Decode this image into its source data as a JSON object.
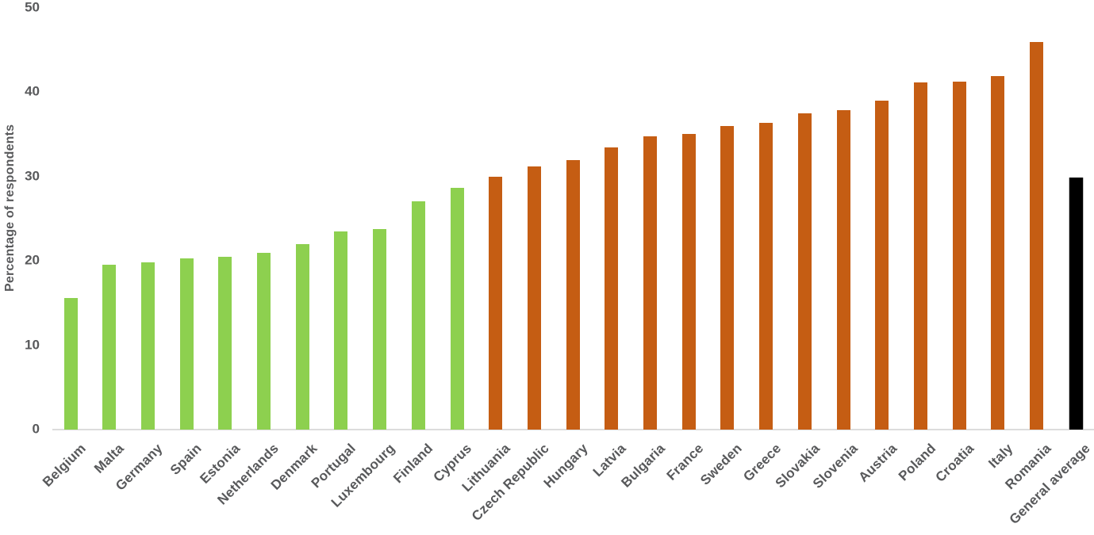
{
  "chart_data": {
    "type": "bar",
    "title": "",
    "xlabel": "",
    "ylabel": "Percentage of respondents",
    "ylim": [
      0,
      50
    ],
    "yticks": [
      0,
      10,
      20,
      30,
      40,
      50
    ],
    "grid": false,
    "legend_position": "none",
    "categories": [
      "Belgium",
      "Malta",
      "Germany",
      "Spain",
      "Estonia",
      "Netherlands",
      "Denmark",
      "Portugal",
      "Luxembourg",
      "Finland",
      "Cyprus",
      "Lithuania",
      "Czech Republic",
      "Hungary",
      "Latvia",
      "Bulgaria",
      "France",
      "Sweden",
      "Greece",
      "Slovakia",
      "Slovenia",
      "Austria",
      "Poland",
      "Croatia",
      "Italy",
      "Romania",
      "General average"
    ],
    "values": [
      15.6,
      19.5,
      19.8,
      20.3,
      20.5,
      20.9,
      22.0,
      23.5,
      23.8,
      27.0,
      28.6,
      30.0,
      31.2,
      31.9,
      33.4,
      34.7,
      35.0,
      36.0,
      36.3,
      37.5,
      37.8,
      39.0,
      41.1,
      41.2,
      41.9,
      45.9,
      29.9
    ],
    "groups": [
      "below_average",
      "below_average",
      "below_average",
      "below_average",
      "below_average",
      "below_average",
      "below_average",
      "below_average",
      "below_average",
      "below_average",
      "below_average",
      "above_average",
      "above_average",
      "above_average",
      "above_average",
      "above_average",
      "above_average",
      "above_average",
      "above_average",
      "above_average",
      "above_average",
      "above_average",
      "above_average",
      "above_average",
      "above_average",
      "above_average",
      "average"
    ],
    "group_colors": {
      "below_average": "#8dd04f",
      "above_average": "#c55d13",
      "average": "#000000"
    }
  },
  "colors": {
    "axis_line": "#dcdcdc",
    "label_text": "#58595b",
    "background": "#ffffff"
  }
}
